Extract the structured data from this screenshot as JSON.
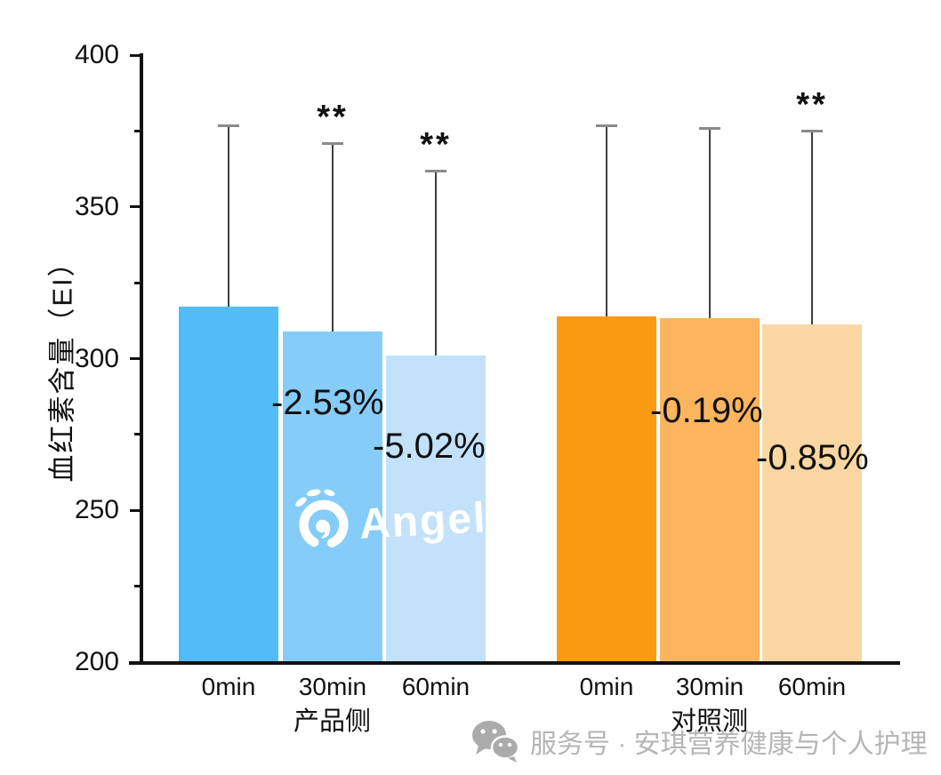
{
  "watermark_logo": {
    "brand": "Angel",
    "registered_mark": "®"
  },
  "footer_watermark": {
    "icon": "wechat-icon",
    "text": "服务号 · 安琪营养健康与个人护理"
  },
  "chart_data": {
    "type": "bar",
    "title": "",
    "xlabel": "",
    "ylabel": "血红素含量（EI）",
    "ylim": [
      200,
      400
    ],
    "yticks": [
      200,
      250,
      300,
      350,
      400
    ],
    "minor_yticks": [
      225,
      275,
      325,
      375
    ],
    "grid": false,
    "legend": null,
    "error_bars": "upper only",
    "groups": [
      {
        "label": "产品侧",
        "bars": [
          {
            "category": "0min",
            "value": 317,
            "error_high": 377,
            "significance": "",
            "change_label": "",
            "color": "#52BCF8"
          },
          {
            "category": "30min",
            "value": 309,
            "error_high": 371,
            "significance": "**",
            "change_label": "-2.53%",
            "color": "#85CCF8"
          },
          {
            "category": "60min",
            "value": 301,
            "error_high": 362,
            "significance": "**",
            "change_label": "-5.02%",
            "color": "#C3E2FA"
          }
        ]
      },
      {
        "label": "对照测",
        "bars": [
          {
            "category": "0min",
            "value": 314,
            "error_high": 377,
            "significance": "",
            "change_label": "",
            "color": "#FA9A12"
          },
          {
            "category": "30min",
            "value": 313.4,
            "error_high": 376,
            "significance": "",
            "change_label": "-0.19%",
            "color": "#FBB55F"
          },
          {
            "category": "60min",
            "value": 311.3,
            "error_high": 375,
            "significance": "**",
            "change_label": "-0.85%",
            "color": "#FAD7A2"
          }
        ]
      }
    ]
  }
}
